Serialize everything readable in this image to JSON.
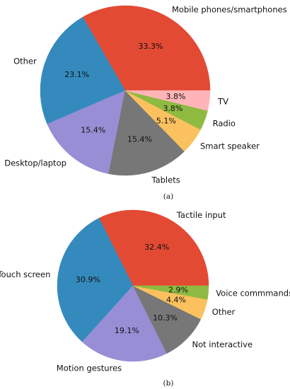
{
  "chart_data": [
    {
      "type": "pie",
      "caption": "(a)",
      "title": "",
      "slices": [
        {
          "label": "Mobile phones/smartphones",
          "value": 33.3,
          "pct_label": "33.3%",
          "color": "#e24a33"
        },
        {
          "label": "Other",
          "value": 23.1,
          "pct_label": "23.1%",
          "color": "#348abd"
        },
        {
          "label": "Desktop/laptop",
          "value": 15.4,
          "pct_label": "15.4%",
          "color": "#988ed5"
        },
        {
          "label": "Tablets",
          "value": 15.4,
          "pct_label": "15.4%",
          "color": "#777777"
        },
        {
          "label": "Smart speaker",
          "value": 5.1,
          "pct_label": "5.1%",
          "color": "#fbc15e"
        },
        {
          "label": "Radio",
          "value": 3.8,
          "pct_label": "3.8%",
          "color": "#8eba42"
        },
        {
          "label": "TV",
          "value": 3.8,
          "pct_label": "3.8%",
          "color": "#ffb5b8"
        }
      ]
    },
    {
      "type": "pie",
      "caption": "(b)",
      "title": "",
      "slices": [
        {
          "label": "Tactile input",
          "value": 32.4,
          "pct_label": "32.4%",
          "color": "#e24a33"
        },
        {
          "label": "Touch screen",
          "value": 30.9,
          "pct_label": "30.9%",
          "color": "#348abd"
        },
        {
          "label": "Motion gestures",
          "value": 19.1,
          "pct_label": "19.1%",
          "color": "#988ed5"
        },
        {
          "label": "Not interactive",
          "value": 10.3,
          "pct_label": "10.3%",
          "color": "#777777"
        },
        {
          "label": "Other",
          "value": 4.4,
          "pct_label": "4.4%",
          "color": "#fbc15e"
        },
        {
          "label": "Voice commmands",
          "value": 2.9,
          "pct_label": "2.9%",
          "color": "#8eba42"
        }
      ]
    }
  ]
}
